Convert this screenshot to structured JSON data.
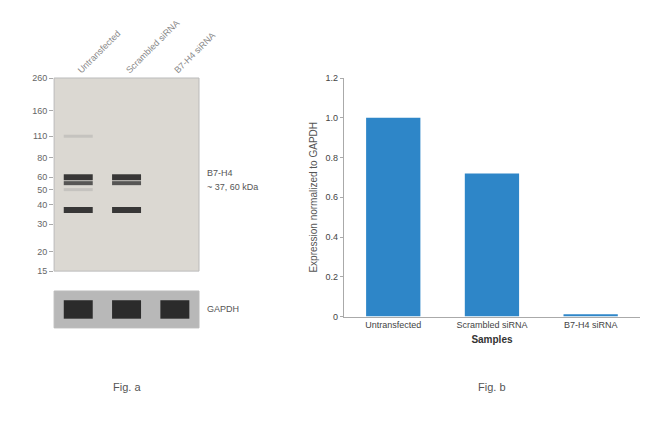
{
  "chart_data": [
    {
      "type": "blot",
      "categories": [
        "Untransfected",
        "Scrambled siRNA",
        "B7-H4 siRNA"
      ],
      "log": "y",
      "ylim": [
        15,
        260
      ],
      "yticks": [
        260,
        160,
        110,
        80,
        60,
        50,
        40,
        30,
        20,
        15
      ],
      "grid": false,
      "color": "#dbd8d2",
      "bands": [
        {
          "value": 60,
          "color": "#1c1c1c",
          "lanes": [
            "Untransfected",
            "Scrambled siRNA"
          ]
        },
        {
          "value": 55,
          "color": "#404040",
          "lanes": [
            "Untransfected",
            "Scrambled siRNA"
          ]
        },
        {
          "value": 37,
          "color": "#1c1c1c",
          "lanes": [
            "Untransfected",
            "Scrambled siRNA"
          ]
        },
        {
          "value": 110,
          "color": "#888888",
          "lanes": [
            "Untransfected"
          ]
        },
        {
          "value": 50,
          "color": "#888888",
          "lanes": [
            "Untransfected"
          ]
        }
      ],
      "annotations": [
        "B7-H4",
        "~ 37, 60 kDa"
      ],
      "control": {
        "name": "GAPDH",
        "color": "#b8b8b8",
        "band_color": "#1c1c1c",
        "lanes": [
          "Untransfected",
          "Scrambled siRNA",
          "B7-H4 siRNA"
        ]
      },
      "caption": "Fig. a"
    },
    {
      "type": "bar",
      "categories": [
        "Untransfected",
        "Scrambled siRNA",
        "B7-H4 siRNA"
      ],
      "values": [
        1.0,
        0.72,
        0.012
      ],
      "color": "#2e86c8",
      "xlabel": "Samples",
      "ylabel": "Expression normalized to GAPDH",
      "ylim": [
        0,
        1.2
      ],
      "yticks": [
        0,
        0.2,
        0.4,
        0.6,
        0.8,
        {
          "value": 1.0,
          "label": "1.0"
        },
        1.2
      ],
      "grid": false,
      "caption": "Fig. b"
    }
  ]
}
